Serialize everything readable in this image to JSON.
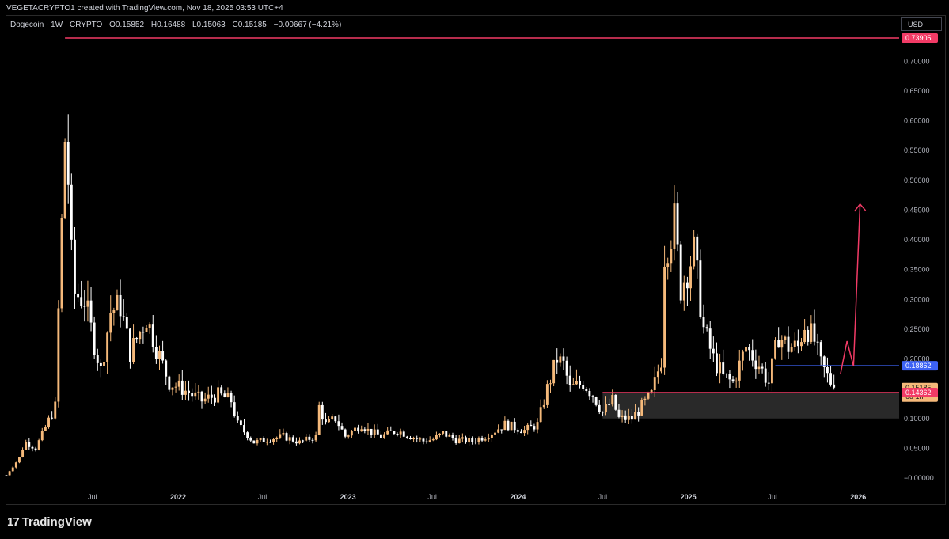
{
  "header": {
    "caption": "VEGETACRYPTO1 created with TradingView.com, Nov 18, 2025 03:53 UTC+4"
  },
  "legend": {
    "symbol": "Dogecoin · 1W · CRYPTO",
    "open": "O0.15852",
    "high": "H0.16488",
    "low": "L0.15063",
    "close": "C0.15185",
    "change": "−0.00667 (−4.21%)"
  },
  "currency": "USD",
  "brand": {
    "logo": "17",
    "name": "TradingView"
  },
  "colors": {
    "background": "#000000",
    "bull_candle": "#f5b97a",
    "bear_candle": "#ffffff",
    "resistance_line": "#f23b66",
    "support_line": "#3d63f5",
    "zone_fill": "#3a3a3a",
    "arrow": "#f23b66"
  },
  "price_tags": {
    "ath": "0.73905",
    "blue": "0.18862",
    "last": "0.15185",
    "countdown": "6d 1h",
    "support": "0.14362"
  },
  "chart_data": {
    "type": "candlestick",
    "title": "Dogecoin · 1W · CRYPTO",
    "ylabel": "USD",
    "ylim": [
      -0.01,
      0.75
    ],
    "yticks": [
      "0.70000",
      "0.65000",
      "0.60000",
      "0.55000",
      "0.50000",
      "0.45000",
      "0.40000",
      "0.35000",
      "0.30000",
      "0.25000",
      "0.20000",
      "0.10000",
      "0.05000",
      "−0.00000"
    ],
    "ytick_values": [
      0.7,
      0.65,
      0.6,
      0.55,
      0.5,
      0.45,
      0.4,
      0.35,
      0.3,
      0.25,
      0.2,
      0.1,
      0.05,
      0.0
    ],
    "xticks": [
      {
        "label": "Jul",
        "date": "2021-07-01",
        "year": false
      },
      {
        "label": "2022",
        "date": "2022-01-01",
        "year": true
      },
      {
        "label": "Jul",
        "date": "2022-07-01",
        "year": false
      },
      {
        "label": "2023",
        "date": "2023-01-01",
        "year": true
      },
      {
        "label": "Jul",
        "date": "2023-07-01",
        "year": false
      },
      {
        "label": "2024",
        "date": "2024-01-01",
        "year": true
      },
      {
        "label": "Jul",
        "date": "2024-07-01",
        "year": false
      },
      {
        "label": "2025",
        "date": "2025-01-01",
        "year": true
      },
      {
        "label": "Jul",
        "date": "2025-07-01",
        "year": false
      },
      {
        "label": "2026",
        "date": "2026-01-01",
        "year": true
      }
    ],
    "x_start": "2020-12-28",
    "x_end": "2026-03-30",
    "weekly_close_path": [
      [
        "2020-12-28",
        0.0047
      ],
      [
        "2021-01-25",
        0.034
      ],
      [
        "2021-02-01",
        0.05
      ],
      [
        "2021-02-08",
        0.06
      ],
      [
        "2021-03-01",
        0.05
      ],
      [
        "2021-04-12",
        0.12
      ],
      [
        "2021-04-19",
        0.28
      ],
      [
        "2021-05-03",
        0.57
      ],
      [
        "2021-05-10",
        0.5
      ],
      [
        "2021-05-17",
        0.37
      ],
      [
        "2021-05-24",
        0.31
      ],
      [
        "2021-06-14",
        0.3
      ],
      [
        "2021-06-28",
        0.25
      ],
      [
        "2021-07-19",
        0.18
      ],
      [
        "2021-08-09",
        0.28
      ],
      [
        "2021-08-30",
        0.29
      ],
      [
        "2021-09-20",
        0.21
      ],
      [
        "2021-10-25",
        0.27
      ],
      [
        "2021-11-15",
        0.22
      ],
      [
        "2021-12-13",
        0.16
      ],
      [
        "2022-01-10",
        0.15
      ],
      [
        "2022-01-31",
        0.14
      ],
      [
        "2022-02-21",
        0.13
      ],
      [
        "2022-03-28",
        0.14
      ],
      [
        "2022-04-25",
        0.13
      ],
      [
        "2022-05-09",
        0.09
      ],
      [
        "2022-06-13",
        0.06
      ],
      [
        "2022-07-11",
        0.065
      ],
      [
        "2022-08-15",
        0.07
      ],
      [
        "2022-09-19",
        0.06
      ],
      [
        "2022-10-24",
        0.07
      ],
      [
        "2022-10-31",
        0.12
      ],
      [
        "2022-11-14",
        0.09
      ],
      [
        "2022-12-05",
        0.1
      ],
      [
        "2022-12-26",
        0.07
      ],
      [
        "2023-01-30",
        0.09
      ],
      [
        "2023-02-13",
        0.08
      ],
      [
        "2023-03-13",
        0.07
      ],
      [
        "2023-04-17",
        0.08
      ],
      [
        "2023-05-15",
        0.07
      ],
      [
        "2023-06-12",
        0.062
      ],
      [
        "2023-07-03",
        0.065
      ],
      [
        "2023-07-24",
        0.075
      ],
      [
        "2023-08-21",
        0.064
      ],
      [
        "2023-09-25",
        0.062
      ],
      [
        "2023-10-23",
        0.07
      ],
      [
        "2023-11-13",
        0.08
      ],
      [
        "2023-12-04",
        0.09
      ],
      [
        "2024-01-15",
        0.08
      ],
      [
        "2024-02-12",
        0.09
      ],
      [
        "2024-03-04",
        0.15
      ],
      [
        "2024-03-25",
        0.2
      ],
      [
        "2024-04-08",
        0.19
      ],
      [
        "2024-04-22",
        0.15
      ],
      [
        "2024-05-20",
        0.16
      ],
      [
        "2024-06-10",
        0.14
      ],
      [
        "2024-07-01",
        0.11
      ],
      [
        "2024-07-22",
        0.13
      ],
      [
        "2024-08-05",
        0.1
      ],
      [
        "2024-09-02",
        0.1
      ],
      [
        "2024-09-23",
        0.12
      ],
      [
        "2024-10-14",
        0.14
      ],
      [
        "2024-11-04",
        0.2
      ],
      [
        "2024-11-11",
        0.38
      ],
      [
        "2024-12-02",
        0.43
      ],
      [
        "2024-12-16",
        0.32
      ],
      [
        "2025-01-13",
        0.38
      ],
      [
        "2025-02-03",
        0.25
      ],
      [
        "2025-02-24",
        0.2
      ],
      [
        "2025-03-17",
        0.17
      ],
      [
        "2025-04-07",
        0.16
      ],
      [
        "2025-05-05",
        0.22
      ],
      [
        "2025-06-02",
        0.19
      ],
      [
        "2025-06-23",
        0.16
      ],
      [
        "2025-07-14",
        0.24
      ],
      [
        "2025-08-04",
        0.22
      ],
      [
        "2025-08-25",
        0.22
      ],
      [
        "2025-09-08",
        0.26
      ],
      [
        "2025-09-29",
        0.23
      ],
      [
        "2025-10-13",
        0.19
      ],
      [
        "2025-11-10",
        0.15185
      ]
    ],
    "annotations": [
      {
        "type": "hline",
        "price": 0.73905,
        "color": "#f23b66",
        "from": "2021-05-03"
      },
      {
        "type": "hline",
        "price": 0.18862,
        "color": "#3d63f5",
        "from": "2025-07-07"
      },
      {
        "type": "hline",
        "price": 0.14362,
        "color": "#f23b66",
        "from": "2024-07-01"
      },
      {
        "type": "zone",
        "top": 0.14362,
        "bottom": 0.1,
        "from": "2024-07-01"
      },
      {
        "type": "arrow",
        "color": "#f23b66",
        "points": [
          [
            "2025-11-24",
            0.175
          ],
          [
            "2025-12-08",
            0.23
          ],
          [
            "2025-12-22",
            0.188
          ],
          [
            "2026-01-05",
            0.46
          ]
        ]
      }
    ]
  }
}
